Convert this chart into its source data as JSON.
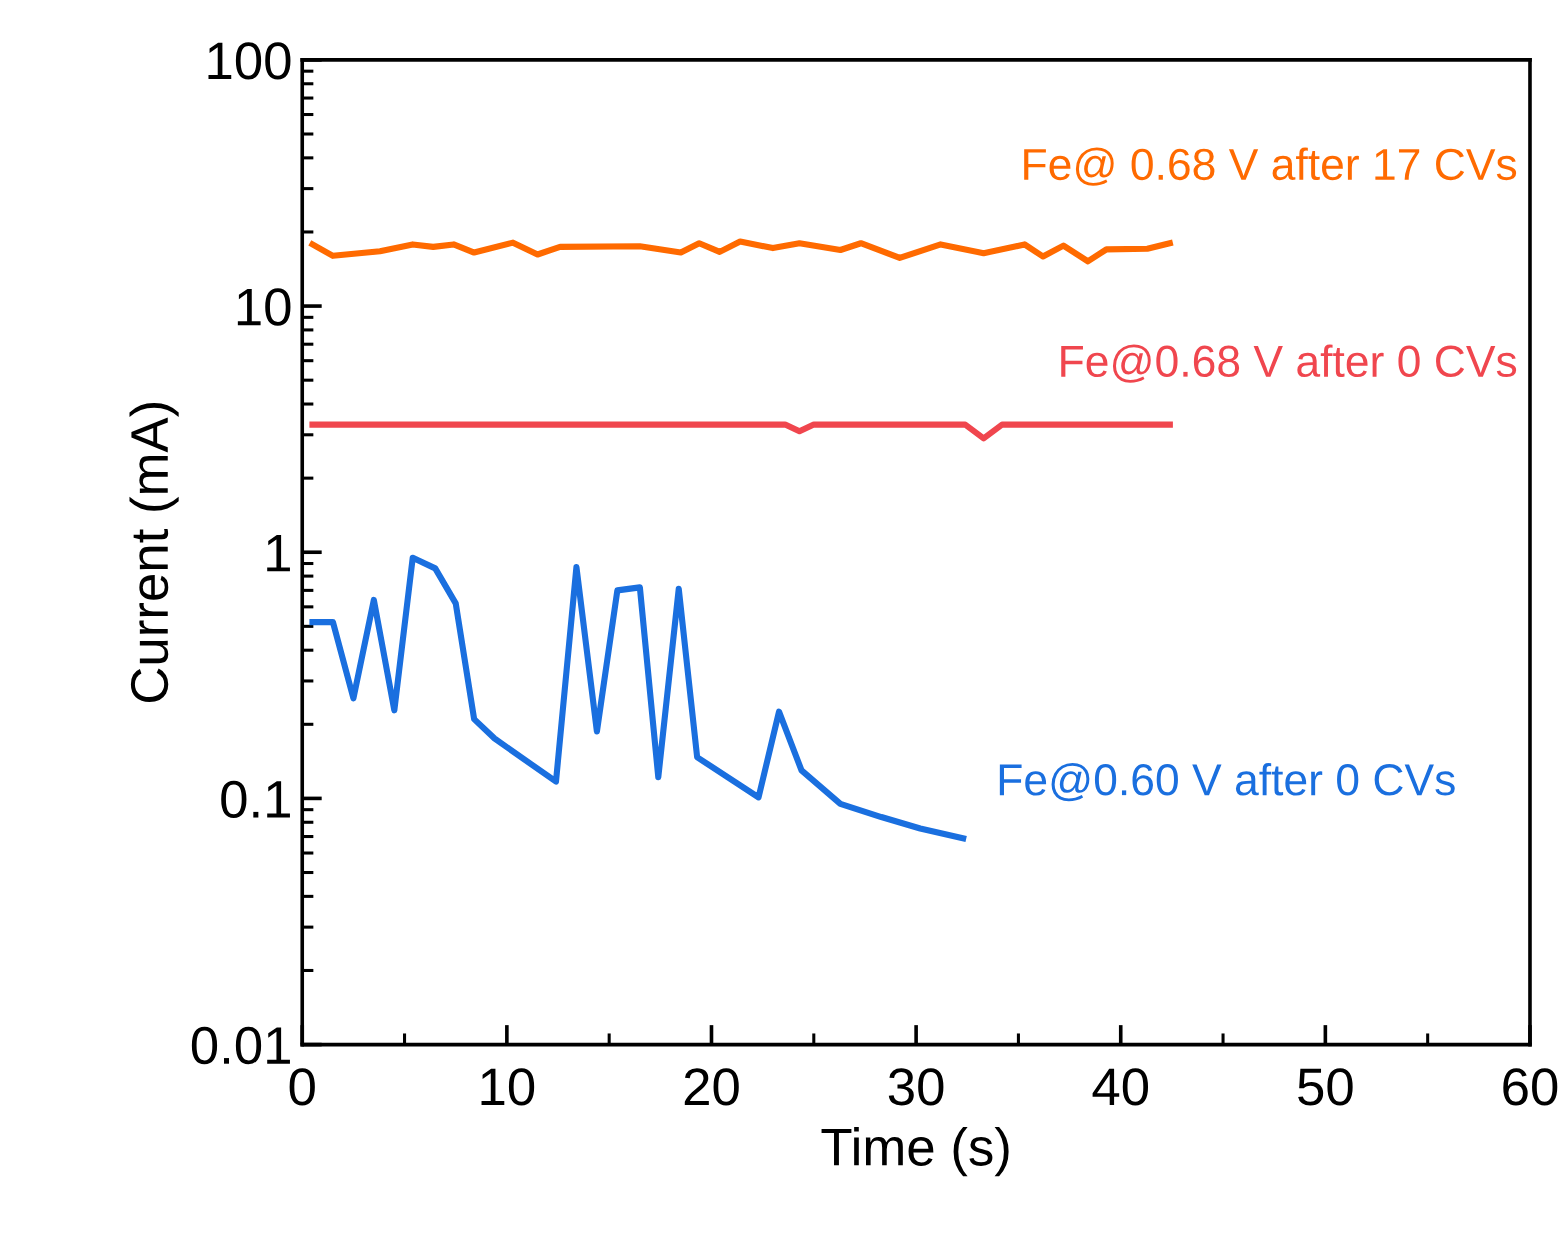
{
  "chart_data": {
    "type": "line",
    "xlabel": "Time (s)",
    "ylabel": "Current (mA)",
    "log": "y",
    "xlim": [
      0,
      60
    ],
    "xticks": [
      0,
      10,
      20,
      30,
      40,
      50,
      60
    ],
    "ylim": [
      0.01,
      100
    ],
    "yticks": [
      0.01,
      0.1,
      1,
      10,
      100
    ],
    "grid": false,
    "legend": false,
    "marker": "none",
    "line_style": "solid",
    "series": [
      {
        "name": "Fe@ 0.68 V after 17 CVs",
        "color": "#ff6a00",
        "x": [
          0.5,
          1.5,
          3.8,
          5.4,
          6.4,
          7.4,
          8.4,
          10.3,
          11.5,
          12.6,
          16.5,
          18.5,
          19.4,
          20.4,
          21.4,
          23.0,
          24.3,
          26.3,
          27.3,
          29.2,
          31.2,
          33.3,
          35.3,
          36.2,
          37.2,
          38.4,
          39.3,
          41.3,
          42.4
        ],
        "values": [
          17.8,
          16.0,
          16.7,
          17.8,
          17.4,
          17.8,
          16.5,
          18.1,
          16.2,
          17.4,
          17.5,
          16.5,
          18.0,
          16.6,
          18.3,
          17.2,
          18.0,
          16.9,
          18.0,
          15.7,
          17.8,
          16.4,
          17.8,
          15.9,
          17.6,
          15.2,
          17.0,
          17.1,
          18.0
        ]
      },
      {
        "name": "Fe@0.68 V after 0 CVs",
        "color": "#f0464e",
        "x": [
          0.5,
          23.6,
          24.3,
          25.0,
          32.4,
          33.3,
          34.2,
          42.4
        ],
        "values": [
          3.3,
          3.3,
          3.1,
          3.3,
          3.3,
          2.9,
          3.3,
          3.3
        ]
      },
      {
        "name": "Fe@0.60 V after 0 CVs",
        "color": "#1a6fdf",
        "x": [
          0.5,
          1.5,
          2.5,
          3.5,
          4.5,
          5.4,
          6.5,
          7.5,
          8.4,
          9.4,
          12.4,
          13.4,
          14.4,
          15.4,
          16.5,
          17.4,
          18.4,
          19.3,
          22.3,
          23.3,
          24.4,
          26.3,
          28.3,
          30.2,
          32.3
        ],
        "values": [
          0.52,
          0.52,
          0.255,
          0.64,
          0.228,
          0.95,
          0.86,
          0.62,
          0.21,
          0.175,
          0.117,
          0.87,
          0.187,
          0.7,
          0.72,
          0.122,
          0.71,
          0.147,
          0.101,
          0.225,
          0.13,
          0.095,
          0.084,
          0.0755,
          0.0688
        ]
      }
    ]
  }
}
